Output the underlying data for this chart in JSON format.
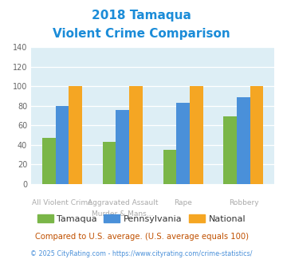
{
  "title_line1": "2018 Tamaqua",
  "title_line2": "Violent Crime Comparison",
  "top_labels": [
    "",
    "Aggravated Assault",
    "",
    ""
  ],
  "bot_labels": [
    "All Violent Crime",
    "Murder & Mans...",
    "Rape",
    "Robbery"
  ],
  "tamaqua": [
    47,
    43,
    35,
    69
  ],
  "pennsylvania": [
    80,
    76,
    83,
    89
  ],
  "national": [
    100,
    100,
    100,
    100
  ],
  "tamaqua_color": "#7ab648",
  "pennsylvania_color": "#4a90d9",
  "national_color": "#f5a623",
  "bg_color": "#ddeef5",
  "title_color": "#1b8cd8",
  "ylabel_max": 140,
  "yticks": [
    0,
    20,
    40,
    60,
    80,
    100,
    120,
    140
  ],
  "legend_labels": [
    "Tamaqua",
    "Pennsylvania",
    "National"
  ],
  "footnote1": "Compared to U.S. average. (U.S. average equals 100)",
  "footnote2": "© 2025 CityRating.com - https://www.cityrating.com/crime-statistics/",
  "footnote1_color": "#c05000",
  "footnote2_color": "#4a90d9",
  "xtick_color": "#aaaaaa"
}
